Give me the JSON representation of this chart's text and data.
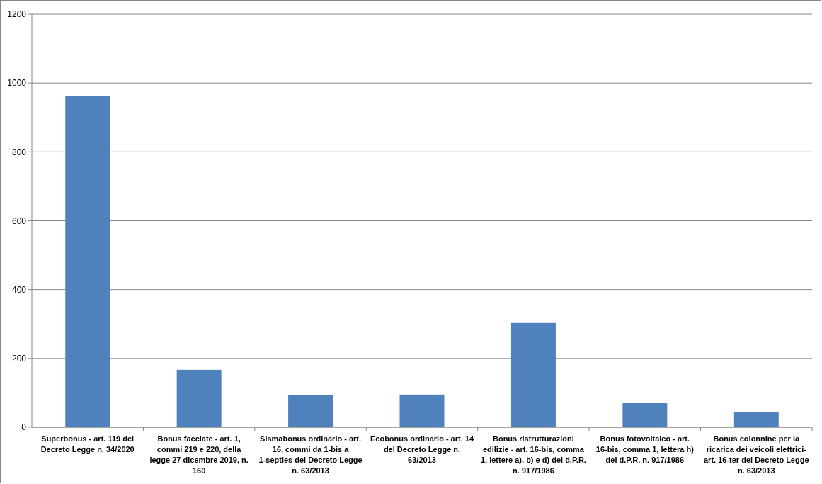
{
  "chart_data": {
    "type": "bar",
    "categories": [
      "Superbonus - art. 119 del Decreto Legge n. 34/2020",
      "Bonus facciate  - art. 1, commi 219 e 220, della legge 27 dicembre 2019, n. 160",
      "Sismabonus ordinario  - art. 16, commi da 1-bis a 1-septies del Decreto Legge n. 63/2013",
      "Ecobonus ordinario - art. 14 del Decreto Legge n. 63/2013",
      "Bonus ristrutturazioni edilizie - art. 16-bis, comma 1, lettere a), b) e d) del d.P.R. n. 917/1986",
      "Bonus fotovoltaico  - art. 16-bis, comma 1, lettera h) del d.P.R. n. 917/1986",
      "Bonus colonnine  per la ricarica dei veicoli elettrici- art. 16-ter del Decreto Legge n. 63/2013"
    ],
    "values": [
      963,
      167,
      93,
      95,
      303,
      70,
      45
    ],
    "color": "#4f81bd",
    "ylim": [
      0,
      1200
    ],
    "yticks": [
      0,
      200,
      400,
      600,
      800,
      1000,
      1200
    ],
    "grid": "y"
  }
}
